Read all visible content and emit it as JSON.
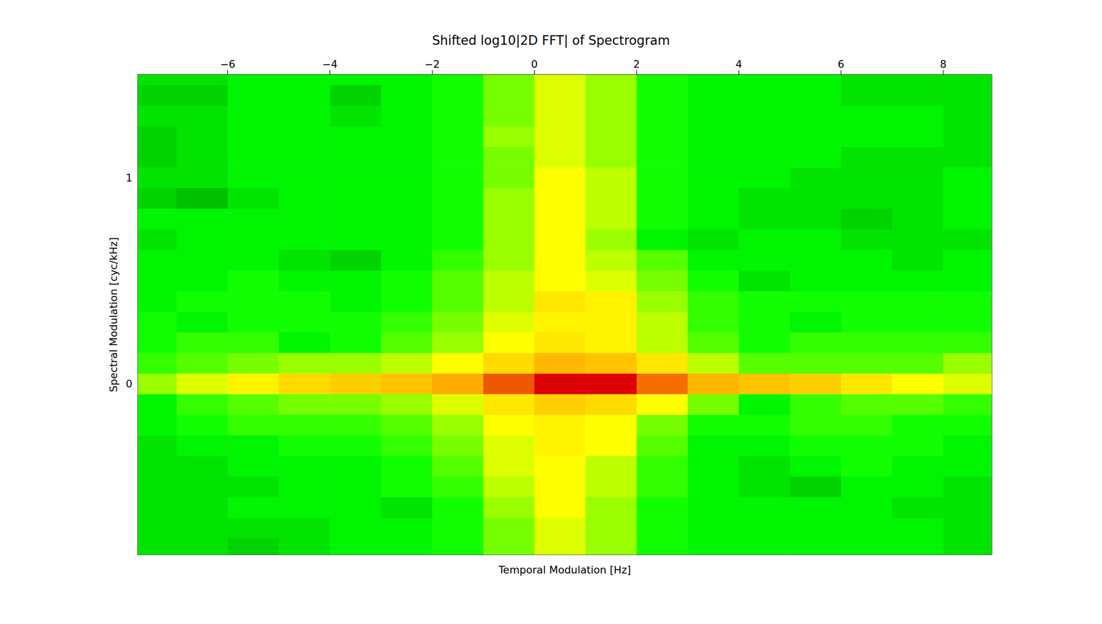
{
  "chart_data": {
    "type": "heatmap",
    "title": "Shifted log10|2D FFT| of Spectrogram",
    "x_label": "Temporal Modulation [Hz]",
    "y_label": "Spectral Modulation [cyc/kHz]",
    "xlim": [
      -7.76,
      8.95
    ],
    "ylim": [
      -0.83,
      1.5
    ],
    "xticks": [
      {
        "value": -6,
        "label": "−6"
      },
      {
        "value": -4,
        "label": "−4"
      },
      {
        "value": -2,
        "label": "−2"
      },
      0,
      2,
      4,
      6,
      8
    ],
    "yticks": [
      0,
      1
    ],
    "zlim": [
      2,
      5
    ],
    "x": [
      -7.5,
      -6.5,
      -5.5,
      -4.5,
      -3.5,
      -2.5,
      -1.5,
      -0.5,
      0.5,
      1.5,
      2.5,
      3.5,
      4.5,
      5.5,
      6.5,
      7.5,
      8.5
    ],
    "y": [
      -0.8,
      -0.7,
      -0.6,
      -0.5,
      -0.4,
      -0.3,
      -0.2,
      -0.1,
      0.0,
      0.1,
      0.2,
      0.3,
      0.4,
      0.5,
      0.6,
      0.7,
      0.8,
      0.9,
      1.0,
      1.1,
      1.2,
      1.3,
      1.4,
      1.5
    ],
    "values": [
      [
        2.6,
        2.6,
        2.5,
        2.6,
        2.7,
        2.7,
        2.8,
        3.1,
        3.4,
        3.2,
        2.8,
        2.7,
        2.7,
        2.7,
        2.7,
        2.7,
        2.6
      ],
      [
        2.6,
        2.6,
        2.6,
        2.6,
        2.7,
        2.7,
        2.8,
        3.1,
        3.4,
        3.2,
        2.8,
        2.7,
        2.7,
        2.7,
        2.7,
        2.7,
        2.6
      ],
      [
        2.6,
        2.6,
        2.7,
        2.7,
        2.7,
        2.6,
        2.8,
        3.2,
        3.5,
        3.2,
        2.8,
        2.7,
        2.7,
        2.7,
        2.7,
        2.6,
        2.6
      ],
      [
        2.6,
        2.6,
        2.6,
        2.7,
        2.7,
        2.8,
        2.9,
        3.3,
        3.5,
        3.3,
        2.9,
        2.7,
        2.6,
        2.5,
        2.7,
        2.7,
        2.6
      ],
      [
        2.6,
        2.6,
        2.7,
        2.7,
        2.7,
        2.8,
        3.0,
        3.4,
        3.5,
        3.3,
        2.9,
        2.7,
        2.6,
        2.7,
        2.8,
        2.7,
        2.7
      ],
      [
        2.6,
        2.7,
        2.7,
        2.8,
        2.8,
        2.9,
        3.1,
        3.4,
        3.6,
        3.5,
        3.0,
        2.7,
        2.7,
        2.8,
        2.8,
        2.8,
        2.7
      ],
      [
        2.7,
        2.8,
        2.9,
        2.9,
        2.9,
        3.0,
        3.2,
        3.5,
        3.6,
        3.5,
        3.1,
        2.8,
        2.8,
        2.9,
        2.9,
        2.8,
        2.8
      ],
      [
        2.7,
        2.9,
        3.0,
        3.1,
        3.1,
        3.2,
        3.4,
        3.7,
        3.9,
        3.8,
        3.5,
        3.1,
        2.7,
        2.9,
        3.0,
        3.0,
        2.9
      ],
      [
        3.2,
        3.4,
        3.6,
        3.8,
        3.9,
        4.0,
        4.2,
        4.6,
        5.0,
        5.0,
        4.5,
        4.1,
        4.0,
        3.9,
        3.7,
        3.5,
        3.4
      ],
      [
        2.9,
        3.0,
        3.1,
        3.2,
        3.2,
        3.3,
        3.5,
        3.8,
        4.1,
        4.0,
        3.7,
        3.3,
        3.0,
        3.0,
        3.0,
        3.0,
        3.2
      ],
      [
        2.8,
        2.9,
        2.9,
        2.7,
        2.8,
        3.0,
        3.2,
        3.5,
        3.7,
        3.6,
        3.3,
        3.0,
        2.8,
        2.9,
        2.9,
        2.9,
        2.9
      ],
      [
        2.8,
        2.7,
        2.8,
        2.8,
        2.8,
        2.9,
        3.1,
        3.4,
        3.6,
        3.6,
        3.3,
        2.9,
        2.8,
        2.7,
        2.8,
        2.8,
        2.8
      ],
      [
        2.7,
        2.8,
        2.8,
        2.8,
        2.7,
        2.8,
        3.0,
        3.3,
        3.7,
        3.6,
        3.2,
        2.9,
        2.8,
        2.8,
        2.8,
        2.8,
        2.8
      ],
      [
        2.7,
        2.7,
        2.8,
        2.7,
        2.7,
        2.8,
        3.0,
        3.3,
        3.5,
        3.4,
        3.1,
        2.8,
        2.6,
        2.7,
        2.7,
        2.7,
        2.7
      ],
      [
        2.7,
        2.7,
        2.7,
        2.6,
        2.5,
        2.7,
        2.9,
        3.2,
        3.5,
        3.3,
        3.0,
        2.7,
        2.7,
        2.7,
        2.7,
        2.6,
        2.7
      ],
      [
        2.6,
        2.7,
        2.7,
        2.7,
        2.7,
        2.7,
        2.8,
        3.2,
        3.5,
        3.2,
        2.7,
        2.6,
        2.7,
        2.7,
        2.6,
        2.6,
        2.6
      ],
      [
        2.7,
        2.7,
        2.7,
        2.7,
        2.7,
        2.7,
        2.8,
        3.2,
        3.5,
        3.3,
        2.8,
        2.7,
        2.6,
        2.6,
        2.5,
        2.6,
        2.7
      ],
      [
        2.5,
        2.4,
        2.6,
        2.7,
        2.7,
        2.7,
        2.8,
        3.2,
        3.5,
        3.3,
        2.8,
        2.7,
        2.6,
        2.6,
        2.6,
        2.6,
        2.7
      ],
      [
        2.6,
        2.6,
        2.7,
        2.7,
        2.7,
        2.7,
        2.8,
        3.1,
        3.5,
        3.3,
        2.8,
        2.7,
        2.7,
        2.6,
        2.6,
        2.6,
        2.7
      ],
      [
        2.5,
        2.6,
        2.7,
        2.7,
        2.7,
        2.7,
        2.8,
        3.1,
        3.4,
        3.2,
        2.8,
        2.7,
        2.7,
        2.7,
        2.6,
        2.6,
        2.6
      ],
      [
        2.5,
        2.6,
        2.7,
        2.7,
        2.7,
        2.7,
        2.8,
        3.2,
        3.4,
        3.2,
        2.8,
        2.7,
        2.7,
        2.7,
        2.7,
        2.7,
        2.6
      ],
      [
        2.6,
        2.6,
        2.7,
        2.7,
        2.6,
        2.7,
        2.8,
        3.1,
        3.4,
        3.2,
        2.8,
        2.7,
        2.7,
        2.7,
        2.7,
        2.7,
        2.6
      ],
      [
        2.5,
        2.5,
        2.7,
        2.7,
        2.5,
        2.7,
        2.8,
        3.1,
        3.4,
        3.2,
        2.8,
        2.7,
        2.7,
        2.7,
        2.6,
        2.6,
        2.6
      ],
      [
        2.6,
        2.6,
        2.7,
        2.7,
        2.7,
        2.7,
        2.8,
        3.1,
        3.4,
        3.2,
        2.8,
        2.7,
        2.7,
        2.7,
        2.6,
        2.6,
        2.6
      ]
    ]
  }
}
